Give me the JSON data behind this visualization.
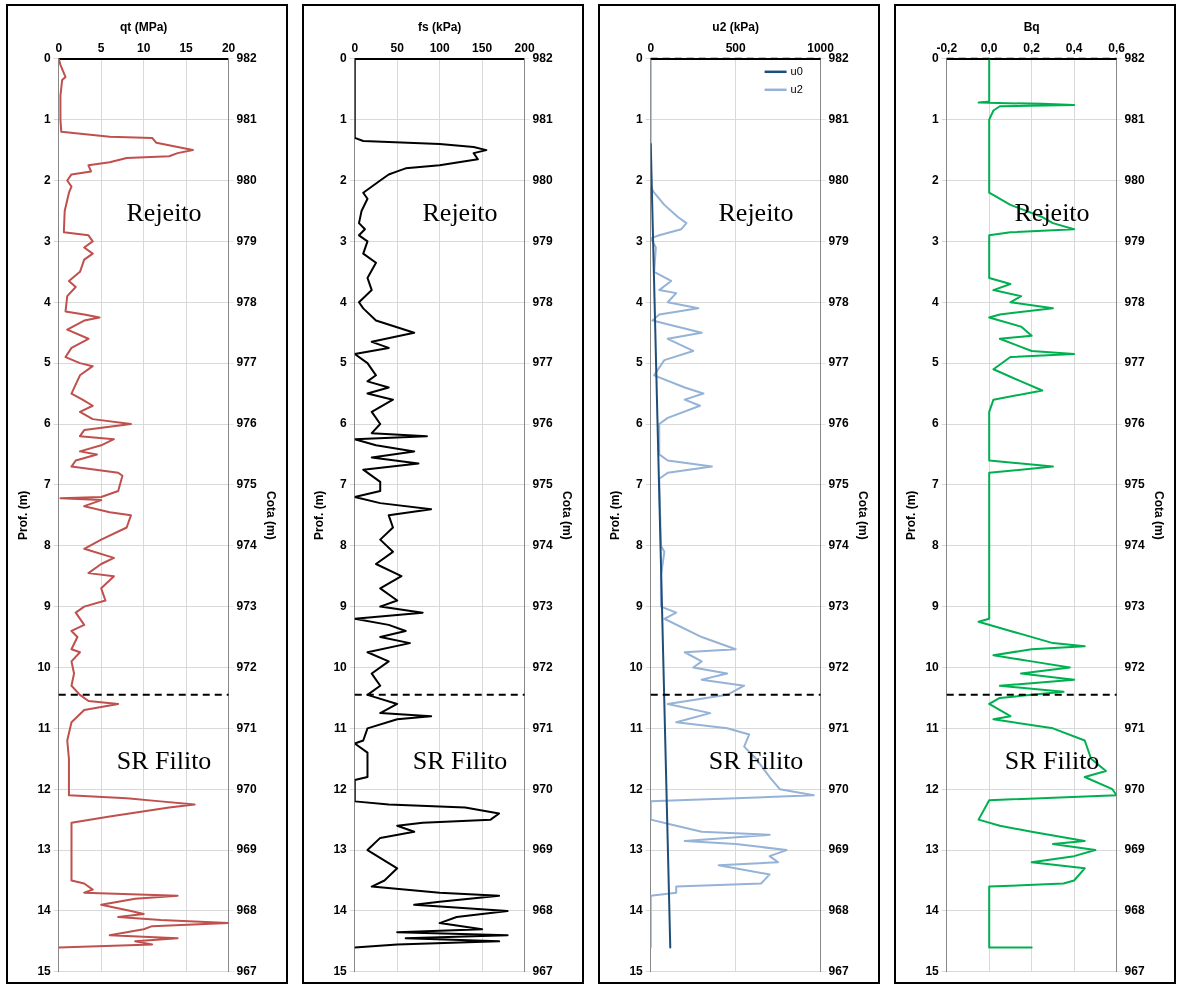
{
  "chart_data": [
    {
      "type": "line",
      "xlabel": "qt (MPa)",
      "ylabel": "Prof. (m)",
      "y2label": "Cota (m)",
      "xlim": [
        0,
        20
      ],
      "xticks": [
        0,
        5,
        10,
        15,
        20
      ],
      "ylim": [
        15,
        0
      ],
      "yticks": [
        0,
        1,
        2,
        3,
        4,
        5,
        6,
        7,
        8,
        9,
        10,
        11,
        12,
        13,
        14,
        15
      ],
      "y2lim": [
        967,
        982
      ],
      "y2ticks": [
        967,
        968,
        969,
        970,
        971,
        972,
        973,
        974,
        975,
        976,
        977,
        978,
        979,
        980,
        981,
        982
      ],
      "grid": true,
      "marker": "none",
      "annotations": [
        "Rejeito",
        "SR Filito"
      ],
      "ref_lines": [
        {
          "axis": "y",
          "value": 10.45,
          "label": null,
          "color": "#000000",
          "line_style": "dashed"
        }
      ],
      "series": [
        {
          "color": "#c0504d",
          "x": [
            0,
            0.2,
            0.8,
            0.4,
            0.2,
            0.2,
            0.3,
            6,
            11,
            11.5,
            14,
            15.8,
            14,
            13,
            8,
            6,
            3.5,
            3.8,
            1.5,
            1.0,
            1.5,
            1.2,
            0.7,
            0.6,
            3.5,
            4,
            3,
            4,
            3,
            2.5,
            1.2,
            2,
            1,
            0.8,
            3,
            4.8,
            3,
            1,
            3.5,
            1.5,
            0.8,
            2.5,
            4,
            2.5,
            2,
            1.5,
            2.8,
            4,
            2.5,
            4,
            8.5,
            3,
            2.5,
            6.5,
            5,
            2.5,
            4.5,
            2,
            1.5,
            7,
            7.5,
            7,
            5,
            0.2,
            5,
            3,
            6,
            8.5,
            8,
            5,
            3,
            6.5,
            5,
            3.5,
            6.5,
            5,
            5.5,
            3,
            2,
            3,
            1.5,
            2.2,
            1.5,
            2.5,
            1.5,
            1.8,
            1.5,
            2.5,
            3.5,
            7,
            3,
            1.5,
            1,
            1.2,
            1.2,
            8,
            12,
            16,
            13,
            6,
            1.5,
            1.5,
            3,
            4,
            3,
            14,
            9,
            7,
            5,
            8.5,
            10,
            7,
            12,
            20,
            11,
            10,
            6,
            14,
            9,
            11,
            0
          ],
          "values": [
            0,
            0.1,
            0.3,
            0.35,
            0.6,
            1.0,
            1.2,
            1.28,
            1.3,
            1.38,
            1.45,
            1.5,
            1.55,
            1.6,
            1.63,
            1.7,
            1.75,
            1.85,
            1.9,
            2.0,
            2.1,
            2.2,
            2.5,
            2.85,
            2.9,
            3.0,
            3.1,
            3.2,
            3.3,
            3.5,
            3.65,
            3.75,
            3.9,
            4.15,
            4.2,
            4.25,
            4.3,
            4.45,
            4.6,
            4.75,
            4.9,
            5.0,
            5.05,
            5.2,
            5.35,
            5.5,
            5.6,
            5.7,
            5.8,
            5.92,
            6.0,
            6.1,
            6.2,
            6.25,
            6.35,
            6.45,
            6.5,
            6.6,
            6.7,
            6.8,
            6.85,
            7.1,
            7.2,
            7.22,
            7.25,
            7.35,
            7.45,
            7.5,
            7.7,
            7.9,
            8.05,
            8.2,
            8.3,
            8.45,
            8.5,
            8.7,
            8.9,
            9.0,
            9.1,
            9.3,
            9.4,
            9.5,
            9.7,
            9.75,
            9.9,
            10.1,
            10.3,
            10.45,
            10.55,
            10.6,
            10.7,
            10.9,
            11.2,
            11.5,
            12.1,
            12.15,
            12.2,
            12.25,
            12.3,
            12.45,
            12.55,
            13.5,
            13.55,
            13.65,
            13.7,
            13.75,
            13.8,
            13.85,
            13.9,
            14.0,
            14.05,
            14.1,
            14.15,
            14.2,
            14.25,
            14.3,
            14.4,
            14.45,
            14.5,
            14.55,
            14.6
          ]
        }
      ]
    },
    {
      "type": "line",
      "xlabel": "fs (kPa)",
      "ylabel": "Prof. (m)",
      "y2label": "Cota (m)",
      "xlim": [
        0,
        200
      ],
      "xticks": [
        0,
        50,
        100,
        150,
        200
      ],
      "ylim": [
        15,
        0
      ],
      "yticks": [
        0,
        1,
        2,
        3,
        4,
        5,
        6,
        7,
        8,
        9,
        10,
        11,
        12,
        13,
        14,
        15
      ],
      "y2lim": [
        967,
        982
      ],
      "y2ticks": [
        967,
        968,
        969,
        970,
        971,
        972,
        973,
        974,
        975,
        976,
        977,
        978,
        979,
        980,
        981,
        982
      ],
      "grid": true,
      "marker": "none",
      "annotations": [
        "Rejeito",
        "SR Filito"
      ],
      "ref_lines": [
        {
          "axis": "y",
          "value": 10.45,
          "label": null,
          "color": "#000000",
          "line_style": "dashed"
        }
      ],
      "series": [
        {
          "color": "#000000",
          "x": [
            0,
            0,
            10,
            100,
            140,
            155,
            140,
            145,
            100,
            60,
            50,
            40,
            30,
            10,
            15,
            8,
            5,
            12,
            5,
            15,
            10,
            25,
            15,
            20,
            5,
            10,
            25,
            70,
            20,
            40,
            0,
            15,
            25,
            15,
            40,
            15,
            45,
            20,
            30,
            20,
            85,
            0,
            25,
            70,
            20,
            75,
            10,
            30,
            30,
            0,
            30,
            90,
            40,
            45,
            30,
            45,
            25,
            55,
            30,
            50,
            30,
            80,
            0,
            40,
            60,
            30,
            65,
            15,
            40,
            20,
            30,
            15,
            50,
            30,
            90,
            50,
            15,
            10,
            0,
            15,
            15,
            0,
            0,
            40,
            130,
            170,
            160,
            80,
            50,
            70,
            30,
            15,
            50,
            35,
            20,
            100,
            170,
            100,
            70,
            180,
            120,
            100,
            150,
            50,
            180,
            60,
            170,
            50,
            0
          ],
          "values": [
            0,
            1.3,
            1.35,
            1.4,
            1.45,
            1.5,
            1.55,
            1.65,
            1.75,
            1.8,
            1.85,
            1.9,
            2.0,
            2.2,
            2.3,
            2.5,
            2.7,
            2.8,
            2.9,
            3.0,
            3.2,
            3.35,
            3.6,
            3.8,
            4.0,
            4.1,
            4.3,
            4.5,
            4.65,
            4.75,
            4.85,
            5.0,
            5.2,
            5.3,
            5.4,
            5.5,
            5.6,
            5.8,
            6.0,
            6.15,
            6.2,
            6.25,
            6.35,
            6.45,
            6.55,
            6.65,
            6.75,
            6.95,
            7.1,
            7.2,
            7.3,
            7.4,
            7.5,
            7.7,
            7.9,
            8.1,
            8.3,
            8.5,
            8.7,
            8.9,
            9.0,
            9.1,
            9.2,
            9.3,
            9.4,
            9.5,
            9.6,
            9.75,
            9.9,
            10.1,
            10.3,
            10.45,
            10.6,
            10.75,
            10.8,
            10.85,
            11.0,
            11.2,
            11.25,
            11.4,
            11.8,
            11.85,
            12.2,
            12.25,
            12.3,
            12.4,
            12.5,
            12.55,
            12.6,
            12.7,
            12.8,
            13.0,
            13.3,
            13.5,
            13.6,
            13.7,
            13.75,
            13.85,
            13.9,
            14.0,
            14.1,
            14.2,
            14.3,
            14.35,
            14.4,
            14.45,
            14.5,
            14.55,
            14.6
          ]
        }
      ]
    },
    {
      "type": "line",
      "xlabel": "u2 (kPa)",
      "ylabel": "Prof. (m)",
      "y2label": "Cota (m)",
      "xlim": [
        0,
        1000
      ],
      "xticks": [
        0,
        500,
        1000
      ],
      "ylim": [
        15,
        0
      ],
      "yticks": [
        0,
        1,
        2,
        3,
        4,
        5,
        6,
        7,
        8,
        9,
        10,
        11,
        12,
        13,
        14,
        15
      ],
      "y2lim": [
        967,
        982
      ],
      "y2ticks": [
        967,
        968,
        969,
        970,
        971,
        972,
        973,
        974,
        975,
        976,
        977,
        978,
        979,
        980,
        981,
        982
      ],
      "grid": true,
      "marker": "none",
      "legend": "top right",
      "annotations": [
        "Rejeito",
        "SR Filito"
      ],
      "ref_lines": [
        {
          "axis": "y",
          "value": 0,
          "label": null,
          "color": "#000000",
          "line_style": "dashed"
        },
        {
          "axis": "y",
          "value": 10.45,
          "label": null,
          "color": "#000000",
          "line_style": "dashed"
        }
      ],
      "series": [
        {
          "name": "u0",
          "color": "#1f4e79",
          "x": [
            0,
            115
          ],
          "values": [
            1.4,
            14.6
          ]
        },
        {
          "name": "u2",
          "color": "#95b3d7",
          "x": [
            0,
            0,
            20,
            80,
            160,
            210,
            180,
            50,
            0,
            30,
            20,
            120,
            50,
            150,
            100,
            280,
            50,
            10,
            300,
            100,
            250,
            80,
            20,
            200,
            310,
            200,
            290,
            100,
            50,
            50,
            100,
            360,
            100,
            50,
            60,
            80,
            60,
            60,
            150,
            80,
            300,
            500,
            200,
            300,
            250,
            450,
            300,
            550,
            450,
            100,
            350,
            150,
            450,
            580,
            550,
            620,
            700,
            760,
            960,
            500,
            0,
            0,
            150,
            300,
            700,
            200,
            500,
            800,
            700,
            750,
            400,
            700,
            650,
            150,
            150,
            0,
            0
          ],
          "values": [
            0,
            2.1,
            2.2,
            2.4,
            2.6,
            2.7,
            2.8,
            2.9,
            2.95,
            3.1,
            3.5,
            3.65,
            3.8,
            3.85,
            4.0,
            4.1,
            4.2,
            4.3,
            4.5,
            4.6,
            4.8,
            4.95,
            5.2,
            5.4,
            5.5,
            5.6,
            5.7,
            5.9,
            6.0,
            6.5,
            6.6,
            6.7,
            6.8,
            6.9,
            8.0,
            8.1,
            8.5,
            9.0,
            9.1,
            9.2,
            9.5,
            9.7,
            9.75,
            9.9,
            10.0,
            10.1,
            10.2,
            10.3,
            10.45,
            10.6,
            10.75,
            10.9,
            11.0,
            11.1,
            11.3,
            11.5,
            11.8,
            12.0,
            12.1,
            12.15,
            12.2,
            12.5,
            12.6,
            12.7,
            12.75,
            12.85,
            12.9,
            13.0,
            13.1,
            13.2,
            13.25,
            13.4,
            13.55,
            13.6,
            13.7,
            13.75,
            14.6
          ]
        }
      ]
    },
    {
      "type": "line",
      "xlabel": "Bq",
      "ylabel": "Prof. (m)",
      "y2label": "Cota (m)",
      "xlim": [
        -0.2,
        0.6
      ],
      "xticks": [
        {
          "value": -0.2,
          "label": "-0,2"
        },
        {
          "value": 0,
          "label": "0,0"
        },
        {
          "value": 0.2,
          "label": "0,2"
        },
        {
          "value": 0.4,
          "label": "0,4"
        },
        {
          "value": 0.6,
          "label": "0,6"
        }
      ],
      "ylim": [
        15,
        0
      ],
      "yticks": [
        0,
        1,
        2,
        3,
        4,
        5,
        6,
        7,
        8,
        9,
        10,
        11,
        12,
        13,
        14,
        15
      ],
      "y2lim": [
        967,
        982
      ],
      "y2ticks": [
        967,
        968,
        969,
        970,
        971,
        972,
        973,
        974,
        975,
        976,
        977,
        978,
        979,
        980,
        981,
        982
      ],
      "grid": true,
      "marker": "none",
      "annotations": [
        "Rejeito",
        "SR Filito"
      ],
      "ref_lines": [
        {
          "axis": "y",
          "value": 0,
          "label": null,
          "color": "#000000",
          "line_style": "dashed"
        },
        {
          "axis": "y",
          "value": 10.45,
          "label": null,
          "color": "#000000",
          "line_style": "dashed"
        }
      ],
      "series": [
        {
          "color": "#00b050",
          "x": [
            0,
            0,
            -0.05,
            0.25,
            0.4,
            0.05,
            0.02,
            0,
            0,
            0.1,
            0.25,
            0.3,
            0.4,
            0.1,
            0,
            0,
            0.1,
            0.02,
            0.15,
            0.1,
            0.3,
            0.05,
            0,
            0.15,
            0.2,
            0.05,
            0.2,
            0.4,
            0.1,
            0.02,
            0.15,
            0.25,
            0.02,
            0,
            0,
            0.3,
            0,
            0,
            -0.05,
            0.1,
            0.3,
            0.45,
            0.2,
            0.02,
            0.2,
            0.38,
            0.15,
            0.4,
            0.05,
            0.35,
            0.05,
            0,
            0.1,
            0.02,
            0.3,
            0.45,
            0.48,
            0.55,
            0.45,
            0.58,
            0.6,
            0,
            -0.05,
            0.05,
            0.2,
            0.45,
            0.3,
            0.5,
            0.4,
            0.2,
            0.45,
            0.4,
            0.35,
            0,
            0,
            0.2
          ],
          "values": [
            0,
            0.7,
            0.72,
            0.74,
            0.76,
            0.78,
            0.85,
            1.0,
            2.2,
            2.4,
            2.6,
            2.7,
            2.8,
            2.85,
            2.9,
            3.6,
            3.7,
            3.8,
            3.9,
            4.0,
            4.1,
            4.2,
            4.25,
            4.4,
            4.55,
            4.6,
            4.8,
            4.85,
            4.9,
            5.1,
            5.3,
            5.45,
            5.6,
            5.8,
            6.6,
            6.7,
            6.8,
            9.2,
            9.25,
            9.4,
            9.6,
            9.65,
            9.7,
            9.8,
            9.9,
            10.0,
            10.1,
            10.2,
            10.3,
            10.4,
            10.5,
            10.6,
            10.8,
            10.85,
            11.0,
            11.2,
            11.5,
            11.7,
            11.8,
            12.0,
            12.1,
            12.18,
            12.5,
            12.6,
            12.7,
            12.85,
            12.9,
            13.0,
            13.1,
            13.2,
            13.3,
            13.5,
            13.55,
            13.6,
            14.6,
            14.6
          ]
        }
      ]
    }
  ]
}
